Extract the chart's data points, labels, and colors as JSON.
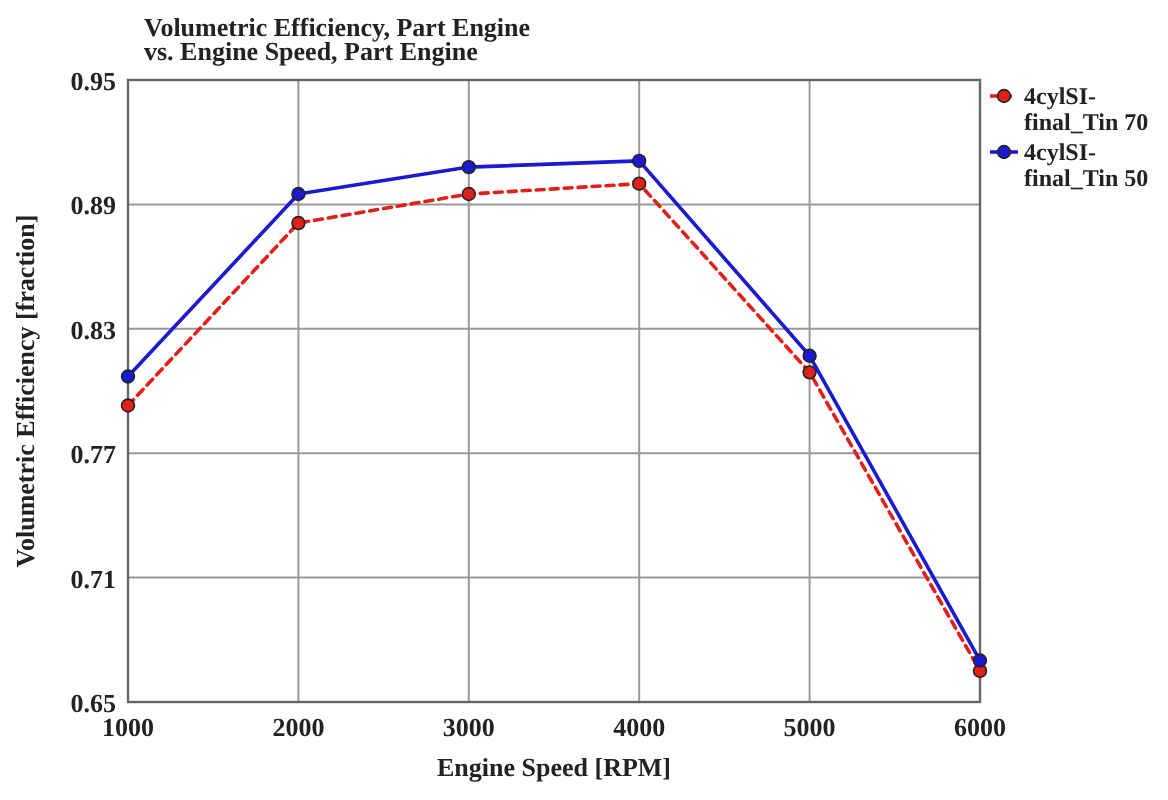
{
  "chart_data": {
    "type": "line",
    "title": "Volumetric Efficiency, Part Engine\nvs. Engine Speed, Part Engine",
    "xlabel": "Engine Speed [RPM]",
    "ylabel": "Volumetric Efficiency [fraction]",
    "x": [
      1000,
      2000,
      3000,
      4000,
      5000,
      6000
    ],
    "series": [
      {
        "name": "4cylSI-final_Tin 70",
        "color": "#e0201a",
        "line_style": "dashed",
        "values": [
          0.793,
          0.881,
          0.895,
          0.9,
          0.809,
          0.665
        ]
      },
      {
        "name": "4cylSI-final_Tin 50",
        "color": "#1a1ad0",
        "line_style": "solid",
        "values": [
          0.807,
          0.895,
          0.908,
          0.911,
          0.817,
          0.67
        ]
      }
    ],
    "xlim": [
      1000,
      6000
    ],
    "xticks": [
      1000,
      2000,
      3000,
      4000,
      5000,
      6000
    ],
    "ylim": [
      0.65,
      0.95
    ],
    "yticks": [
      0.65,
      0.71,
      0.77,
      0.83,
      0.89,
      0.95
    ],
    "grid": true,
    "legend": "right",
    "marker": "circle"
  }
}
